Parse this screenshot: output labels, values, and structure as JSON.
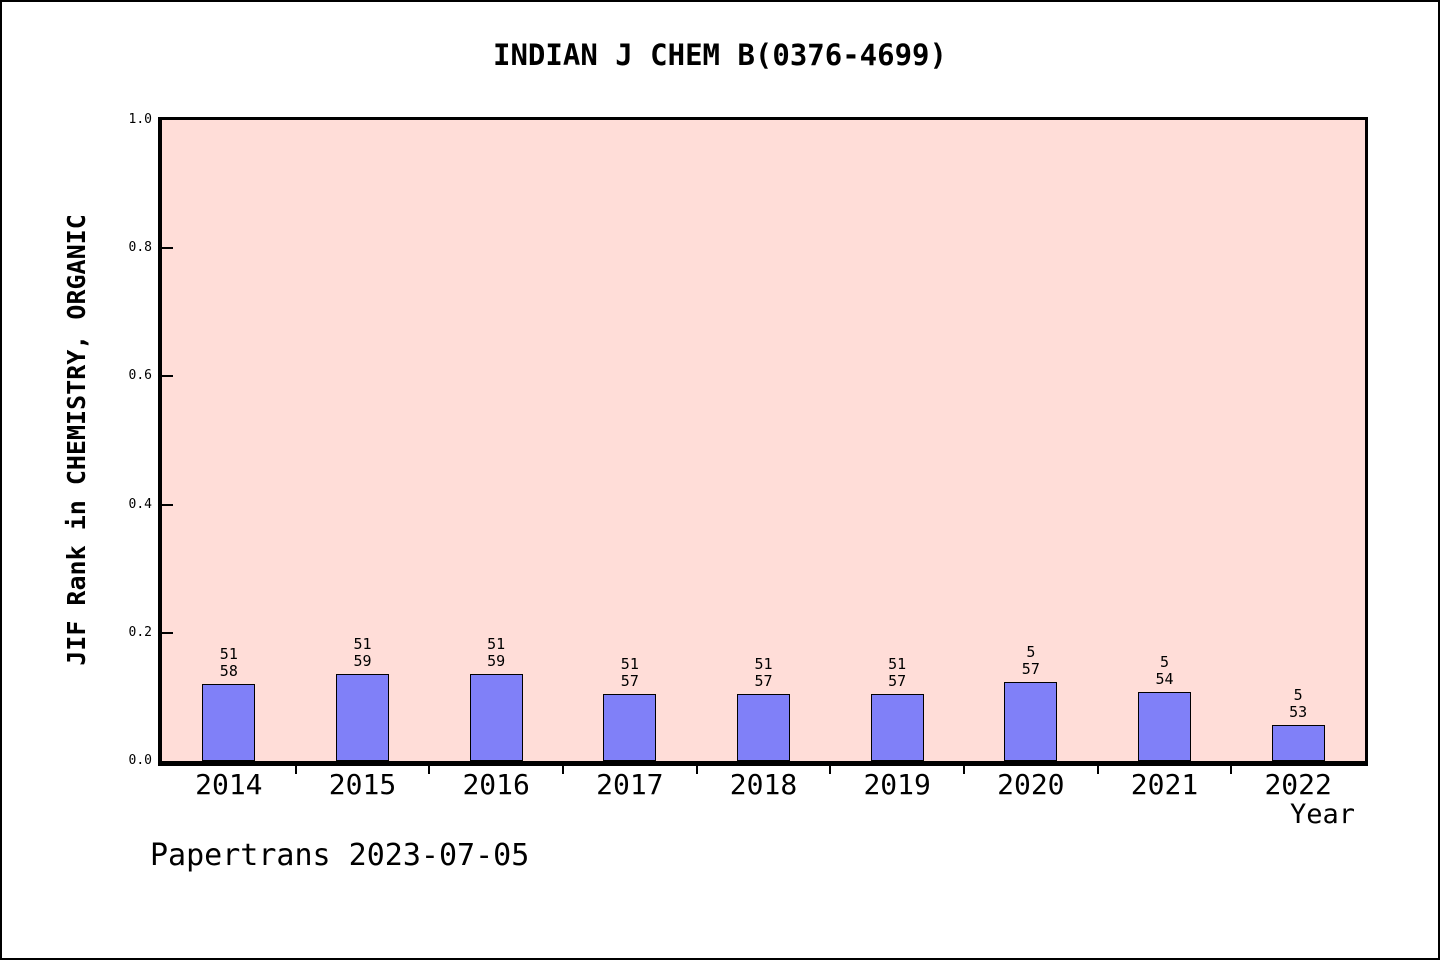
{
  "title": "INDIAN J CHEM B(0376-4699)",
  "footer": "Papertrans 2023-07-05",
  "chart_data": {
    "type": "bar",
    "title": "INDIAN J CHEM B(0376-4699)",
    "xlabel": "Year",
    "ylabel": "JIF Rank in CHEMISTRY, ORGANIC",
    "categories": [
      "2014",
      "2015",
      "2016",
      "2017",
      "2018",
      "2019",
      "2020",
      "2021",
      "2022"
    ],
    "values": [
      0.1207,
      0.1356,
      0.1356,
      0.1053,
      0.1053,
      0.1053,
      0.1228,
      0.1076,
      0.0566
    ],
    "bar_labels": [
      [
        "51",
        "58"
      ],
      [
        "51",
        "59"
      ],
      [
        "51",
        "59"
      ],
      [
        "51",
        "57"
      ],
      [
        "51",
        "57"
      ],
      [
        "51",
        "57"
      ],
      [
        "5",
        "57"
      ],
      [
        "5",
        "54"
      ],
      [
        "5",
        "53"
      ]
    ],
    "ylim": [
      0,
      1
    ],
    "yticks": [
      "0.0",
      "0.2",
      "0.4",
      "0.6",
      "0.8",
      "1.0"
    ],
    "grid": false,
    "legend_position": "none",
    "colors": {
      "bar_fill": "#8080F8",
      "bar_border": "#000000",
      "plot_bg": "#FFDDD8",
      "figure_bg": "#FFFFFF",
      "text": "#000000"
    }
  }
}
